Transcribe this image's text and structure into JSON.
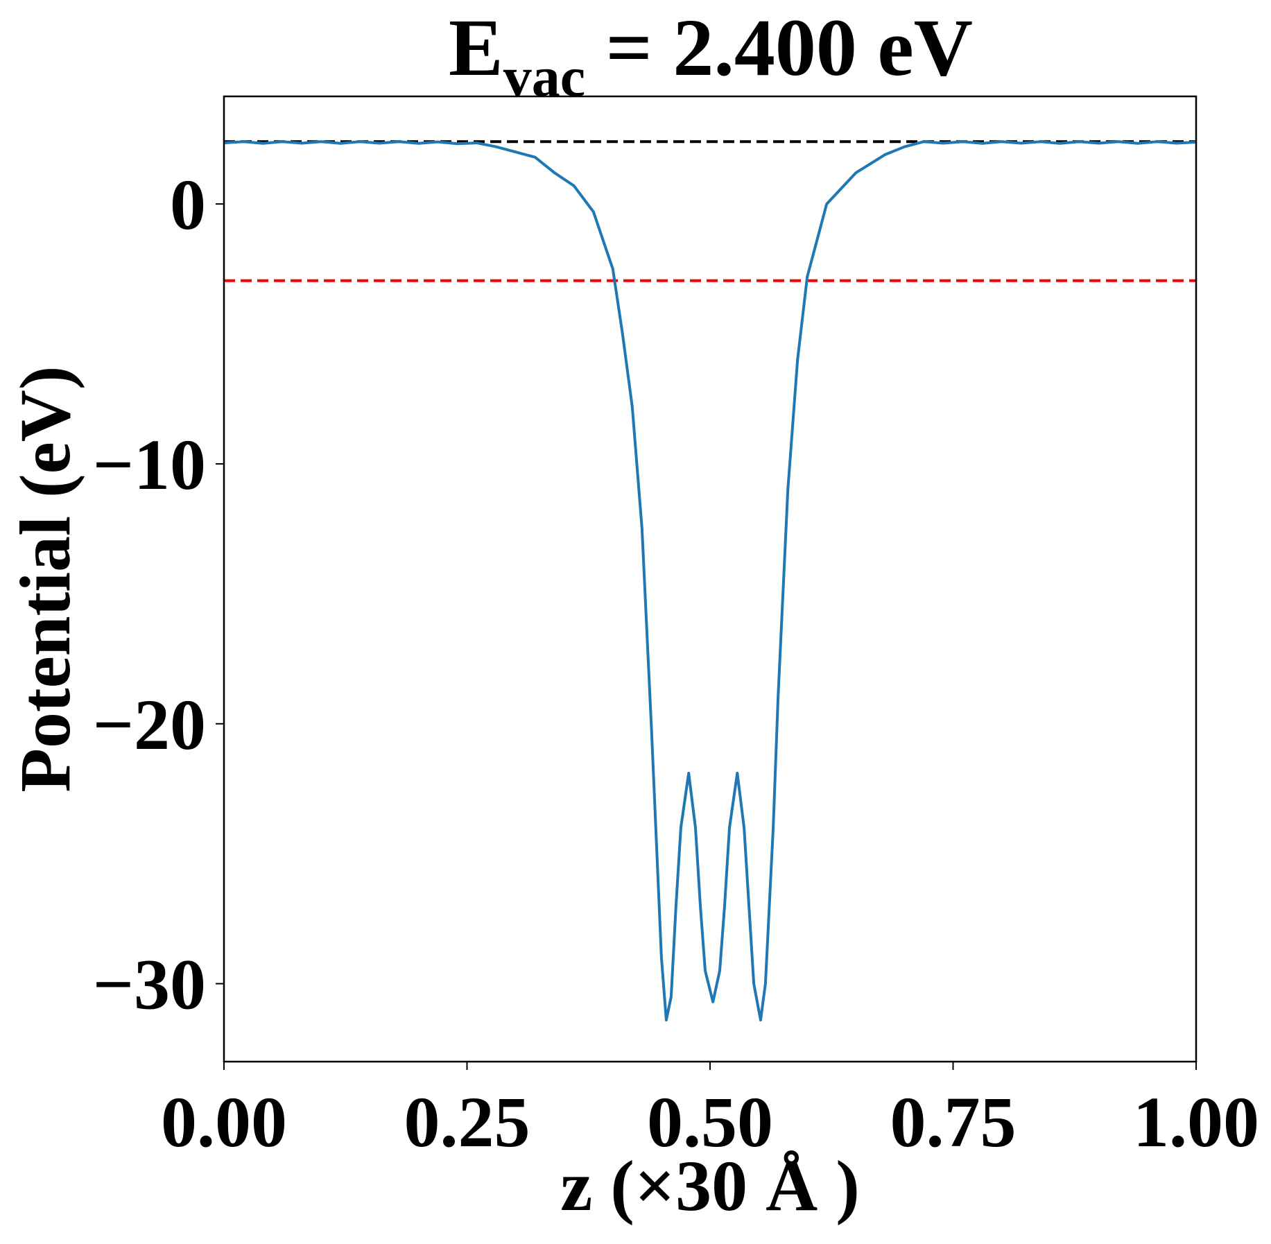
{
  "chart_data": {
    "type": "line",
    "title": {
      "base": "E",
      "sub": "vac",
      "rest": " = 2.400 eV"
    },
    "x_label": "z (×30 Å )",
    "y_label": "Potential (eV)",
    "x": [
      0,
      0.02,
      0.04,
      0.06,
      0.08,
      0.1,
      0.12,
      0.14,
      0.16,
      0.18,
      0.2,
      0.22,
      0.24,
      0.26,
      0.28,
      0.3,
      0.32,
      0.34,
      0.36,
      0.38,
      0.4,
      0.41,
      0.42,
      0.43,
      0.44,
      0.45,
      0.455,
      0.46,
      0.465,
      0.47,
      0.478,
      0.485,
      0.49,
      0.495,
      0.503,
      0.51,
      0.515,
      0.52,
      0.528,
      0.535,
      0.54,
      0.545,
      0.552,
      0.557,
      0.565,
      0.57,
      0.58,
      0.59,
      0.6,
      0.62,
      0.65,
      0.68,
      0.7,
      0.72,
      0.74,
      0.76,
      0.78,
      0.8,
      0.82,
      0.84,
      0.86,
      0.88,
      0.9,
      0.92,
      0.94,
      0.96,
      0.98,
      1.0
    ],
    "series": [
      {
        "name": "Potential",
        "color": "#1f77b4",
        "values": [
          2.35,
          2.4,
          2.33,
          2.4,
          2.34,
          2.4,
          2.33,
          2.4,
          2.34,
          2.4,
          2.33,
          2.39,
          2.32,
          2.35,
          2.2,
          2.0,
          1.8,
          1.2,
          0.7,
          -0.3,
          -2.5,
          -5,
          -7.8,
          -12.5,
          -20.4,
          -29,
          -31.4,
          -30.5,
          -27,
          -24,
          -21.9,
          -24,
          -27,
          -29.5,
          -30.7,
          -29.5,
          -27,
          -24,
          -21.9,
          -24,
          -27,
          -30,
          -31.4,
          -30,
          -24,
          -19,
          -11,
          -6,
          -2.8,
          0,
          1.2,
          1.9,
          2.2,
          2.4,
          2.34,
          2.4,
          2.33,
          2.4,
          2.34,
          2.4,
          2.33,
          2.4,
          2.34,
          2.4,
          2.33,
          2.4,
          2.34,
          2.38
        ]
      }
    ],
    "hlines": [
      {
        "value": 2.4,
        "color": "#000000"
      },
      {
        "value": -2.95,
        "color": "#ff0000"
      }
    ],
    "xlim": [
      0,
      1
    ],
    "ylim": [
      -33.0,
      4.14
    ],
    "xticks": [
      {
        "value": 0,
        "label": "0.00"
      },
      {
        "value": 0.25,
        "label": "0.25"
      },
      {
        "value": 0.5,
        "label": "0.50"
      },
      {
        "value": 0.75,
        "label": "0.75"
      },
      {
        "value": 1,
        "label": "1.00"
      }
    ],
    "yticks": [
      {
        "value": -30,
        "label": "−30"
      },
      {
        "value": -20,
        "label": "−20"
      },
      {
        "value": -10,
        "label": "−10"
      },
      0
    ],
    "grid": false
  }
}
